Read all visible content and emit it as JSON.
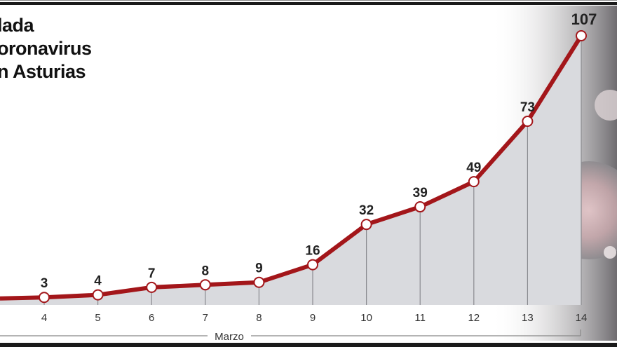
{
  "title_lines": [
    "lada",
    "oronavirus",
    "n Asturias"
  ],
  "chart_data": {
    "type": "line",
    "title": "lada oronavirus n Asturias",
    "xlabel": "Marzo",
    "ylabel": "",
    "categories": [
      "4",
      "5",
      "6",
      "7",
      "8",
      "9",
      "10",
      "11",
      "12",
      "13",
      "14"
    ],
    "values": [
      3,
      4,
      7,
      8,
      9,
      16,
      32,
      39,
      49,
      73,
      107
    ],
    "data_labels": [
      "3",
      "4",
      "7",
      "8",
      "9",
      "16",
      "32",
      "39",
      "49",
      "73",
      "107"
    ],
    "ylim": [
      0,
      107
    ],
    "grid": false,
    "legend": "none",
    "colors": {
      "line": "#a3161a",
      "area": "#d9dade",
      "marker_fill": "#ffffff",
      "text": "#222222",
      "frame": "#1a1a1a"
    }
  }
}
